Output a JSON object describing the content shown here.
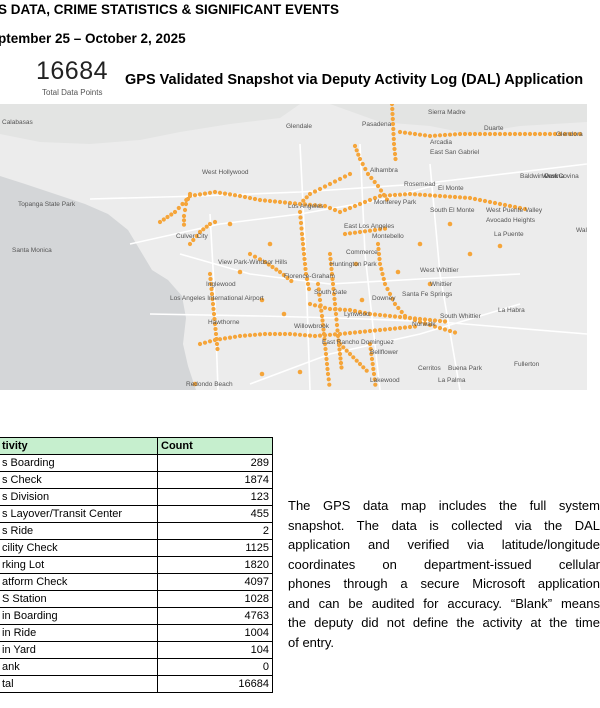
{
  "header": {
    "title": "S DATA, CRIME STATISTICS & SIGNIFICANT EVENTS",
    "date_range": "ptember 25 – October 2, 2025"
  },
  "summary": {
    "total": "16684",
    "total_label": "Total Data Points",
    "map_title": "GPS Validated Snapshot via Deputy Activity Log (DAL) Application"
  },
  "map": {
    "labels": [
      "Calabasas",
      "Glendale",
      "Pasadena",
      "Sierra Madre",
      "Duarte",
      "Glendora",
      "Arcadia",
      "East San Gabriel",
      "Baldwin Park",
      "West Covina",
      "Covina",
      "West Hollywood",
      "Alhambra",
      "Rosemead",
      "El Monte",
      "Topanga State Park",
      "Santa Monica",
      "Los Angeles",
      "Monterey Park",
      "South El Monte",
      "West Puente Valley",
      "Culver City",
      "East Los Angeles",
      "Avocado Heights",
      "Walnut",
      "La Puente",
      "View Park-Windsor Hills",
      "Commerce",
      "Montebello",
      "Huntington Park",
      "West Whittier",
      "Whittier",
      "Los Angeles International Airport",
      "Inglewood",
      "Florence-Graham",
      "South Gate",
      "Downey",
      "Santa Fe Springs",
      "South Whittier",
      "La Habra",
      "Hawthorne",
      "Willowbrook",
      "Lynwood",
      "Norwalk",
      "East Rancho Dominguez",
      "Bellflower",
      "Fullerton",
      "Redondo Beach",
      "Lakewood",
      "Cerritos",
      "Buena Park",
      "La Palma"
    ],
    "colors": {
      "land": "#ececec",
      "water": "#d4d6d8",
      "road": "#ffffff",
      "dot": "#f5a53a"
    }
  },
  "table": {
    "headers": [
      "tivity",
      "Count"
    ],
    "rows": [
      {
        "activity": "s Boarding",
        "count": "289"
      },
      {
        "activity": "s Check",
        "count": "1874"
      },
      {
        "activity": "s Division",
        "count": "123"
      },
      {
        "activity": "s Layover/Transit Center",
        "count": "455"
      },
      {
        "activity": "s Ride",
        "count": "2"
      },
      {
        "activity": "cility Check",
        "count": "1125"
      },
      {
        "activity": "rking Lot",
        "count": "1820"
      },
      {
        "activity": "atform Check",
        "count": "4097"
      },
      {
        "activity": "S Station",
        "count": "1028"
      },
      {
        "activity": " in Boarding",
        "count": "4763"
      },
      {
        "activity": " in Ride",
        "count": "1004"
      },
      {
        "activity": " in Yard",
        "count": "104"
      },
      {
        "activity": "ank",
        "count": "0"
      },
      {
        "activity": "tal",
        "count": "16684"
      }
    ]
  },
  "description": {
    "lines": [
      "The GPS data map includes the full system",
      "snapshot. The data is collected via the DAL",
      "application and verified via latitude/longitude",
      "coordinates on department-issued cellular",
      "phones through a secure Microsoft application",
      "and can be audited for accuracy. “Blank” means",
      "the deputy did not define the activity at the time",
      "of entry."
    ]
  }
}
